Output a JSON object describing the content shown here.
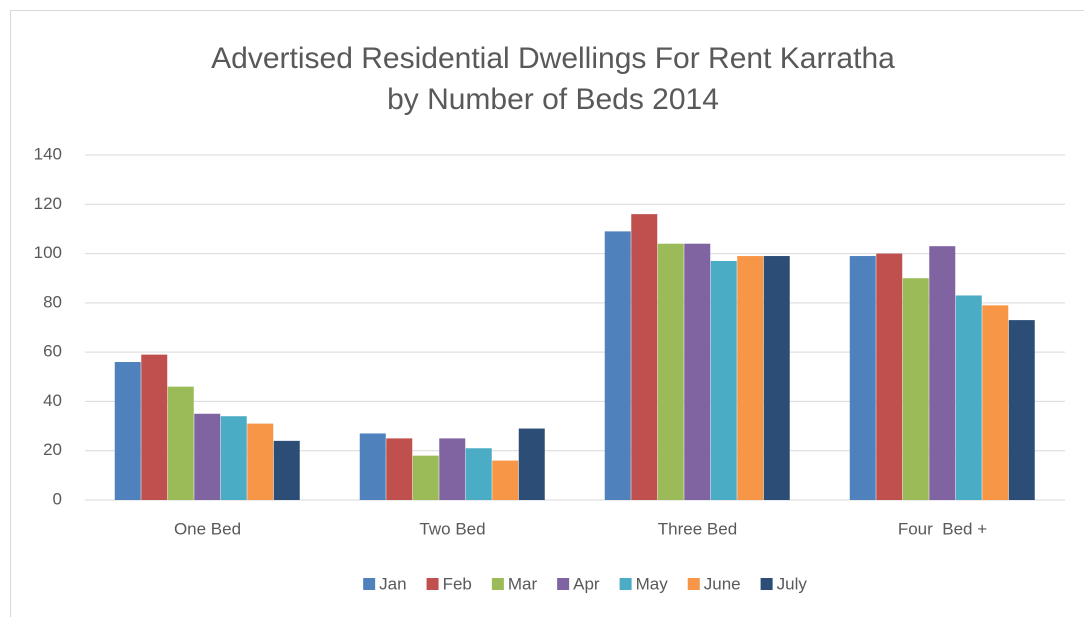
{
  "chart_data": {
    "type": "bar",
    "title": [
      "Advertised Residential Dwellings For Rent Karratha",
      "by Number of Beds 2014"
    ],
    "categories": [
      "One Bed",
      "Two Bed",
      "Three Bed",
      "Four  Bed +"
    ],
    "series": [
      {
        "name": "Jan",
        "color": "#4f81bd",
        "values": [
          56,
          27,
          109,
          99
        ]
      },
      {
        "name": "Feb",
        "color": "#c0504d",
        "values": [
          59,
          25,
          116,
          100
        ]
      },
      {
        "name": "Mar",
        "color": "#9bbb59",
        "values": [
          46,
          18,
          104,
          90
        ]
      },
      {
        "name": "Apr",
        "color": "#8064a2",
        "values": [
          35,
          25,
          104,
          103
        ]
      },
      {
        "name": "May",
        "color": "#4bacc6",
        "values": [
          34,
          21,
          97,
          83
        ]
      },
      {
        "name": "June",
        "color": "#f79646",
        "values": [
          31,
          16,
          99,
          79
        ]
      },
      {
        "name": "July",
        "color": "#2c4d75",
        "values": [
          24,
          29,
          99,
          73
        ]
      }
    ],
    "ylim": [
      0,
      140
    ],
    "yticks": [
      0,
      20,
      40,
      60,
      80,
      100,
      120,
      140
    ],
    "grid": true,
    "legend": "bottom"
  }
}
